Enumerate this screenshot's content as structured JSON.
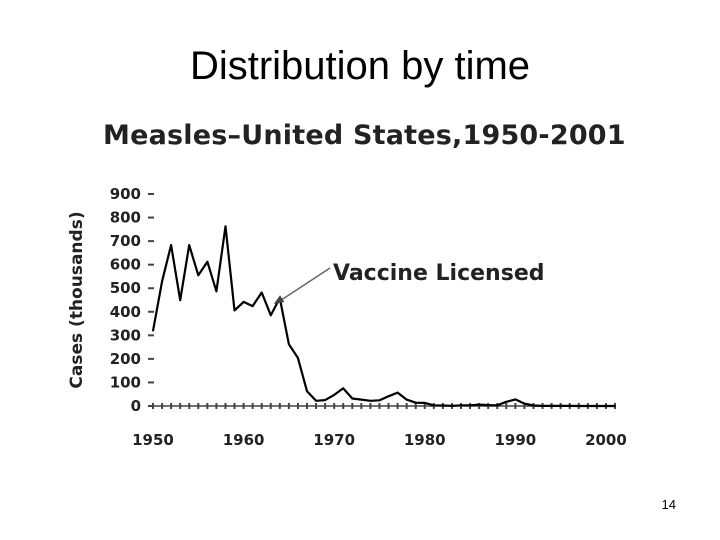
{
  "slide": {
    "title": "Distribution by time",
    "page_number": "14"
  },
  "chart_data": {
    "type": "line",
    "title": "Measles–United States,1950-2001",
    "xlabel": "",
    "ylabel": "Cases (thousands)",
    "xlim": [
      1950,
      2001
    ],
    "ylim": [
      0,
      900
    ],
    "xticks": [
      1950,
      1960,
      1970,
      1980,
      1990,
      2000
    ],
    "yticks": [
      0,
      100,
      200,
      300,
      400,
      500,
      600,
      700,
      800,
      900
    ],
    "grid": false,
    "series": [
      {
        "x": [
          1950,
          1951,
          1952,
          1953,
          1954,
          1955,
          1956,
          1957,
          1958,
          1959,
          1960,
          1961,
          1962,
          1963,
          1964,
          1965,
          1966,
          1967,
          1968,
          1969,
          1970,
          1971,
          1972,
          1973,
          1974,
          1975,
          1976,
          1977,
          1978,
          1979,
          1980,
          1981,
          1982,
          1983,
          1984,
          1985,
          1986,
          1987,
          1988,
          1989,
          1990,
          1991,
          1992,
          1993,
          1994,
          1995,
          1996,
          1997,
          1998,
          1999,
          2000,
          2001
        ],
        "y": [
          319,
          530,
          683,
          449,
          683,
          555,
          612,
          487,
          763,
          406,
          442,
          424,
          482,
          385,
          458,
          262,
          204,
          63,
          22,
          25,
          47,
          75,
          32,
          27,
          22,
          24,
          41,
          57,
          27,
          14,
          13,
          3,
          2,
          1,
          3,
          3,
          6,
          4,
          3,
          18,
          28,
          10,
          2,
          0.3,
          1,
          0.3,
          0.5,
          0.1,
          0.1,
          0.1,
          0.1,
          0.1
        ],
        "color": "#000000"
      }
    ],
    "annotations": [
      {
        "text": "Vaccine Licensed",
        "target_x": 1963,
        "target_y": 450
      }
    ]
  }
}
